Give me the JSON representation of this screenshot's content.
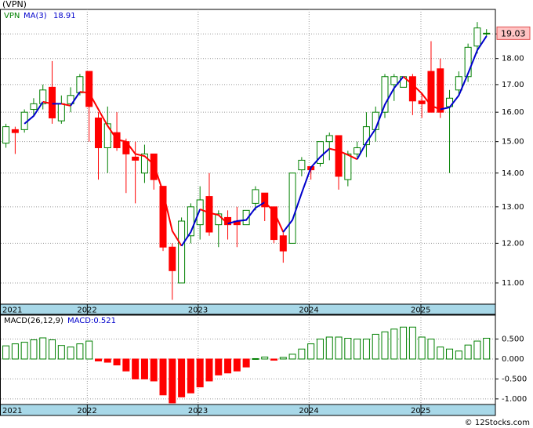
{
  "chart_data": [
    {
      "type": "candlestick",
      "title": "(VPN)",
      "categories": [
        null,
        null,
        null,
        null,
        null,
        null,
        null,
        null,
        null,
        null,
        null,
        null,
        null,
        null,
        null,
        null,
        null,
        null,
        null,
        null,
        null,
        null,
        null,
        null,
        null,
        null,
        null,
        null,
        null,
        null,
        null,
        null,
        null,
        null,
        null,
        null,
        null,
        null,
        null,
        null,
        null,
        null,
        null,
        null,
        null,
        null,
        null,
        null,
        null,
        null,
        null,
        null,
        null
      ],
      "up_color": "#008000",
      "down_color": "#ff0000",
      "log_scale": true,
      "grid": true,
      "xlim": [
        -0.6,
        53
      ],
      "ylim": [
        10.5,
        20.05
      ],
      "xticks": [
        {
          "value": -3.2,
          "label": "2021"
        },
        {
          "value": 8.8,
          "label": "2022"
        },
        {
          "value": 20.8,
          "label": "2023"
        },
        {
          "value": 32.8,
          "label": "2024"
        },
        {
          "value": 44.9,
          "label": "2025"
        }
      ],
      "yticks": [
        {
          "value": 11,
          "label": "11.00"
        },
        {
          "value": 12,
          "label": "12.00"
        },
        {
          "value": 13,
          "label": "13.00"
        },
        {
          "value": 14,
          "label": "14.00"
        },
        {
          "value": 15,
          "label": "15.00"
        },
        {
          "value": 16,
          "label": "16.00"
        },
        {
          "value": 17,
          "label": "17.00"
        },
        {
          "value": 18,
          "label": "18.00"
        },
        {
          "value": 19,
          "label": "19.00"
        }
      ],
      "series": [
        {
          "name": "VPN",
          "color": "#008000",
          "open": [
            14.95,
            15.4,
            15.4,
            16.1,
            16.3,
            16.9,
            15.7,
            16.3,
            16.7,
            17.5,
            15.8,
            14.8,
            15.3,
            15.0,
            14.5,
            14.0,
            14.6,
            13.6,
            11.9,
            11.0,
            12.2,
            12.5,
            13.3,
            12.5,
            12.7,
            12.6,
            12.5,
            13.1,
            13.4,
            13.0,
            12.2,
            12.0,
            14.1,
            14.2,
            14.3,
            15.0,
            15.2,
            13.8,
            14.6,
            14.9,
            15.4,
            16.0,
            17.0,
            16.9,
            17.3,
            16.4,
            17.5,
            17.6,
            16.2,
            16.8,
            17.3,
            18.5,
            19.0
          ],
          "high": [
            15.6,
            15.5,
            16.1,
            16.5,
            17.0,
            17.9,
            16.6,
            16.9,
            17.4,
            17.5,
            16.0,
            16.2,
            16.0,
            15.1,
            15.0,
            14.9,
            14.6,
            13.6,
            12.0,
            12.7,
            13.1,
            13.6,
            14.0,
            12.9,
            12.9,
            13.0,
            12.9,
            13.6,
            13.4,
            13.0,
            12.3,
            14.0,
            14.5,
            14.2,
            15.0,
            15.3,
            15.2,
            14.7,
            15.0,
            16.0,
            16.2,
            17.4,
            17.4,
            17.3,
            17.4,
            16.7,
            18.7,
            18.0,
            16.8,
            17.5,
            18.6,
            19.5,
            19.2
          ],
          "low": [
            14.8,
            14.6,
            15.3,
            15.9,
            16.1,
            15.6,
            15.6,
            16.0,
            16.6,
            15.0,
            13.8,
            14.0,
            14.7,
            13.4,
            13.1,
            13.7,
            13.5,
            11.8,
            10.6,
            11.0,
            12.0,
            12.1,
            12.2,
            11.9,
            12.1,
            11.9,
            12.5,
            12.9,
            12.6,
            12.0,
            11.5,
            12.0,
            13.9,
            13.8,
            14.2,
            14.4,
            13.5,
            13.6,
            14.5,
            14.5,
            15.0,
            15.8,
            16.4,
            16.9,
            15.9,
            15.8,
            16.0,
            15.8,
            14.0,
            16.6,
            17.1,
            18.2,
            18.9
          ],
          "close": [
            15.5,
            15.3,
            16.0,
            16.3,
            16.8,
            15.8,
            16.3,
            16.6,
            17.3,
            16.2,
            14.8,
            15.6,
            14.8,
            14.6,
            14.4,
            14.6,
            13.8,
            11.9,
            11.3,
            12.6,
            13.0,
            13.2,
            12.3,
            12.8,
            12.5,
            12.5,
            12.9,
            13.5,
            13.0,
            12.1,
            11.8,
            14.0,
            14.4,
            14.1,
            15.0,
            15.2,
            13.9,
            14.6,
            14.8,
            15.5,
            16.0,
            17.3,
            17.3,
            17.3,
            16.4,
            16.3,
            16.0,
            16.0,
            16.5,
            17.3,
            18.45,
            19.25,
            19.03
          ]
        },
        {
          "name": "MA(3)",
          "color": "#0000cc",
          "down_color": "#ff0000",
          "values": [
            null,
            null,
            15.6,
            15.87,
            16.37,
            16.3,
            16.3,
            16.23,
            16.73,
            16.7,
            16.1,
            15.53,
            15.07,
            15.0,
            14.6,
            14.53,
            14.27,
            13.43,
            12.33,
            11.93,
            12.3,
            12.93,
            12.83,
            12.77,
            12.53,
            12.6,
            12.63,
            12.97,
            13.13,
            12.87,
            12.3,
            12.63,
            13.4,
            14.17,
            14.5,
            14.77,
            14.7,
            14.57,
            14.43,
            14.97,
            15.43,
            16.27,
            16.87,
            17.3,
            17.0,
            16.67,
            16.23,
            16.1,
            16.17,
            16.6,
            17.42,
            18.33,
            18.91
          ]
        }
      ]
    },
    {
      "type": "bar",
      "title": "MACD(26,12,9)",
      "legend_label": "MACD:0.521",
      "up_color": "#008000",
      "down_color": "#ff0000",
      "grid": true,
      "xlim": [
        -0.6,
        53
      ],
      "ylim": [
        -1.14,
        1.1
      ],
      "yticks": [
        {
          "value": -1,
          "label": "-1.000"
        },
        {
          "value": -0.5,
          "label": "-0.500"
        },
        {
          "value": 0,
          "label": "0.000"
        },
        {
          "value": 0.5,
          "label": "0.500"
        }
      ],
      "values": [
        0.33,
        0.38,
        0.42,
        0.48,
        0.53,
        0.48,
        0.34,
        0.3,
        0.38,
        0.45,
        -0.05,
        -0.08,
        -0.15,
        -0.3,
        -0.5,
        -0.5,
        -0.55,
        -0.9,
        -1.1,
        -0.95,
        -0.85,
        -0.7,
        -0.55,
        -0.4,
        -0.35,
        -0.3,
        -0.2,
        0.01,
        0.05,
        -0.03,
        0.04,
        0.12,
        0.25,
        0.38,
        0.5,
        0.55,
        0.55,
        0.52,
        0.5,
        0.5,
        0.62,
        0.68,
        0.75,
        0.8,
        0.8,
        0.55,
        0.5,
        0.3,
        0.25,
        0.2,
        0.35,
        0.45,
        0.521
      ]
    }
  ],
  "footer": "© 12Stocks.com"
}
